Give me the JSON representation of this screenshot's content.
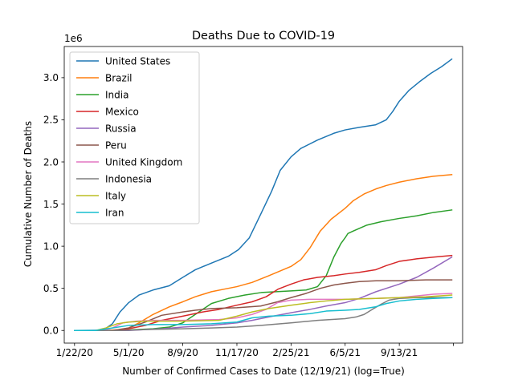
{
  "chart_data": {
    "type": "line",
    "title": "Deaths Due to COVID-19",
    "xlabel": "Number of Confirmed Cases to Date (12/19/21) (log=True)",
    "ylabel": "Cumulative Number of Deaths",
    "y_offset_label": "1e6",
    "x_tick_labels": [
      "1/22/20",
      "5/1/20",
      "8/9/20",
      "11/17/20",
      "2/25/21",
      "6/5/21",
      "9/13/21",
      ""
    ],
    "x_ticks": [
      "2020-01-22",
      "2020-05-01",
      "2020-08-09",
      "2020-11-17",
      "2021-02-25",
      "2021-06-05",
      "2021-09-13",
      "2021-12-22"
    ],
    "xlim": [
      "2020-01-03",
      "2022-01-08"
    ],
    "y_ticks": [
      0.0,
      0.5,
      1.0,
      1.5,
      2.0,
      2.5,
      3.0
    ],
    "y_tick_labels": [
      "0.0",
      "0.5",
      "1.0",
      "1.5",
      "2.0",
      "2.5",
      "3.0"
    ],
    "ylim": [
      -0.15,
      3.37
    ],
    "y_unit": 1000000,
    "grid": false,
    "legend_position": "top-left",
    "series": [
      {
        "name": "United States",
        "color": "#1f77b4",
        "points": [
          [
            "2020-01-22",
            0
          ],
          [
            "2020-03-15",
            0.003
          ],
          [
            "2020-04-01",
            0.08
          ],
          [
            "2020-04-15",
            0.22
          ],
          [
            "2020-05-01",
            0.33
          ],
          [
            "2020-05-20",
            0.42
          ],
          [
            "2020-06-15",
            0.48
          ],
          [
            "2020-07-15",
            0.53
          ],
          [
            "2020-08-09",
            0.63
          ],
          [
            "2020-09-01",
            0.72
          ],
          [
            "2020-10-01",
            0.8
          ],
          [
            "2020-11-01",
            0.88
          ],
          [
            "2020-11-20",
            0.96
          ],
          [
            "2020-12-10",
            1.1
          ],
          [
            "2020-12-31",
            1.38
          ],
          [
            "2021-01-20",
            1.65
          ],
          [
            "2021-02-05",
            1.9
          ],
          [
            "2021-02-25",
            2.06
          ],
          [
            "2021-03-15",
            2.16
          ],
          [
            "2021-04-15",
            2.26
          ],
          [
            "2021-05-15",
            2.34
          ],
          [
            "2021-06-05",
            2.38
          ],
          [
            "2021-07-01",
            2.41
          ],
          [
            "2021-07-31",
            2.44
          ],
          [
            "2021-08-20",
            2.5
          ],
          [
            "2021-09-01",
            2.6
          ],
          [
            "2021-09-13",
            2.72
          ],
          [
            "2021-10-01",
            2.85
          ],
          [
            "2021-10-20",
            2.95
          ],
          [
            "2021-11-10",
            3.05
          ],
          [
            "2021-11-30",
            3.13
          ],
          [
            "2021-12-19",
            3.22
          ]
        ]
      },
      {
        "name": "Brazil",
        "color": "#ff7f0e",
        "points": [
          [
            "2020-01-22",
            0
          ],
          [
            "2020-03-20",
            0
          ],
          [
            "2020-04-15",
            0.01
          ],
          [
            "2020-05-01",
            0.03
          ],
          [
            "2020-05-20",
            0.09
          ],
          [
            "2020-06-15",
            0.19
          ],
          [
            "2020-07-15",
            0.28
          ],
          [
            "2020-08-09",
            0.34
          ],
          [
            "2020-09-01",
            0.4
          ],
          [
            "2020-10-01",
            0.46
          ],
          [
            "2020-11-01",
            0.5
          ],
          [
            "2020-11-17",
            0.52
          ],
          [
            "2020-12-15",
            0.57
          ],
          [
            "2021-01-15",
            0.65
          ],
          [
            "2021-02-10",
            0.72
          ],
          [
            "2021-02-25",
            0.76
          ],
          [
            "2021-03-15",
            0.84
          ],
          [
            "2021-04-01",
            0.98
          ],
          [
            "2021-04-20",
            1.18
          ],
          [
            "2021-05-10",
            1.32
          ],
          [
            "2021-06-05",
            1.45
          ],
          [
            "2021-06-20",
            1.54
          ],
          [
            "2021-07-10",
            1.62
          ],
          [
            "2021-08-01",
            1.68
          ],
          [
            "2021-08-20",
            1.72
          ],
          [
            "2021-09-13",
            1.76
          ],
          [
            "2021-10-15",
            1.8
          ],
          [
            "2021-11-15",
            1.83
          ],
          [
            "2021-12-19",
            1.85
          ]
        ]
      },
      {
        "name": "India",
        "color": "#2ca02c",
        "points": [
          [
            "2020-01-22",
            0
          ],
          [
            "2020-04-15",
            0
          ],
          [
            "2020-05-15",
            0.01
          ],
          [
            "2020-06-15",
            0.02
          ],
          [
            "2020-07-15",
            0.04
          ],
          [
            "2020-08-09",
            0.09
          ],
          [
            "2020-09-01",
            0.19
          ],
          [
            "2020-10-01",
            0.32
          ],
          [
            "2020-11-01",
            0.38
          ],
          [
            "2020-12-01",
            0.42
          ],
          [
            "2021-01-01",
            0.45
          ],
          [
            "2021-02-25",
            0.47
          ],
          [
            "2021-03-25",
            0.48
          ],
          [
            "2021-04-15",
            0.52
          ],
          [
            "2021-05-01",
            0.65
          ],
          [
            "2021-05-15",
            0.87
          ],
          [
            "2021-05-28",
            1.03
          ],
          [
            "2021-06-05",
            1.1
          ],
          [
            "2021-06-10",
            1.15
          ],
          [
            "2021-06-20",
            1.18
          ],
          [
            "2021-07-15",
            1.25
          ],
          [
            "2021-08-10",
            1.29
          ],
          [
            "2021-09-13",
            1.33
          ],
          [
            "2021-10-15",
            1.36
          ],
          [
            "2021-11-15",
            1.4
          ],
          [
            "2021-12-19",
            1.43
          ]
        ]
      },
      {
        "name": "Mexico",
        "color": "#d62728",
        "points": [
          [
            "2020-01-22",
            0
          ],
          [
            "2020-04-15",
            0
          ],
          [
            "2020-05-01",
            0.02
          ],
          [
            "2020-06-01",
            0.06
          ],
          [
            "2020-07-01",
            0.12
          ],
          [
            "2020-08-09",
            0.17
          ],
          [
            "2020-09-15",
            0.22
          ],
          [
            "2020-10-15",
            0.25
          ],
          [
            "2020-11-17",
            0.3
          ],
          [
            "2020-12-15",
            0.34
          ],
          [
            "2021-01-10",
            0.4
          ],
          [
            "2021-02-01",
            0.49
          ],
          [
            "2021-02-25",
            0.55
          ],
          [
            "2021-03-20",
            0.6
          ],
          [
            "2021-04-15",
            0.63
          ],
          [
            "2021-05-15",
            0.65
          ],
          [
            "2021-06-05",
            0.67
          ],
          [
            "2021-07-01",
            0.69
          ],
          [
            "2021-07-31",
            0.72
          ],
          [
            "2021-08-20",
            0.77
          ],
          [
            "2021-09-13",
            0.82
          ],
          [
            "2021-10-15",
            0.85
          ],
          [
            "2021-11-15",
            0.87
          ],
          [
            "2021-12-19",
            0.89
          ]
        ]
      },
      {
        "name": "Russia",
        "color": "#9467bd",
        "points": [
          [
            "2020-01-22",
            0
          ],
          [
            "2020-05-01",
            0
          ],
          [
            "2020-06-01",
            0.01
          ],
          [
            "2020-07-01",
            0.02
          ],
          [
            "2020-08-09",
            0.04
          ],
          [
            "2020-10-01",
            0.06
          ],
          [
            "2020-11-17",
            0.09
          ],
          [
            "2020-12-15",
            0.12
          ],
          [
            "2021-01-15",
            0.16
          ],
          [
            "2021-02-25",
            0.21
          ],
          [
            "2021-04-01",
            0.25
          ],
          [
            "2021-05-01",
            0.29
          ],
          [
            "2021-06-05",
            0.33
          ],
          [
            "2021-07-01",
            0.38
          ],
          [
            "2021-08-01",
            0.46
          ],
          [
            "2021-09-13",
            0.55
          ],
          [
            "2021-10-15",
            0.63
          ],
          [
            "2021-11-15",
            0.74
          ],
          [
            "2021-12-19",
            0.87
          ]
        ]
      },
      {
        "name": "Peru",
        "color": "#8c564b",
        "points": [
          [
            "2020-01-22",
            0
          ],
          [
            "2020-04-01",
            0
          ],
          [
            "2020-05-01",
            0.03
          ],
          [
            "2020-06-01",
            0.1
          ],
          [
            "2020-07-01",
            0.18
          ],
          [
            "2020-08-09",
            0.22
          ],
          [
            "2020-09-01",
            0.24
          ],
          [
            "2020-10-01",
            0.26
          ],
          [
            "2020-11-17",
            0.27
          ],
          [
            "2020-12-31",
            0.29
          ],
          [
            "2021-01-31",
            0.34
          ],
          [
            "2021-02-25",
            0.39
          ],
          [
            "2021-03-25",
            0.44
          ],
          [
            "2021-04-20",
            0.5
          ],
          [
            "2021-05-15",
            0.54
          ],
          [
            "2021-06-05",
            0.56
          ],
          [
            "2021-07-01",
            0.58
          ],
          [
            "2021-08-01",
            0.59
          ],
          [
            "2021-09-13",
            0.59
          ],
          [
            "2021-11-01",
            0.6
          ],
          [
            "2021-12-19",
            0.6
          ]
        ]
      },
      {
        "name": "United Kingdom",
        "color": "#e377c2",
        "points": [
          [
            "2020-01-22",
            0
          ],
          [
            "2020-03-15",
            0
          ],
          [
            "2020-04-01",
            0.03
          ],
          [
            "2020-04-20",
            0.09
          ],
          [
            "2020-05-15",
            0.11
          ],
          [
            "2020-06-15",
            0.12
          ],
          [
            "2020-08-09",
            0.12
          ],
          [
            "2020-10-15",
            0.13
          ],
          [
            "2020-11-17",
            0.15
          ],
          [
            "2020-12-15",
            0.19
          ],
          [
            "2021-01-10",
            0.25
          ],
          [
            "2021-01-31",
            0.33
          ],
          [
            "2021-02-25",
            0.36
          ],
          [
            "2021-04-01",
            0.37
          ],
          [
            "2021-06-05",
            0.37
          ],
          [
            "2021-08-01",
            0.38
          ],
          [
            "2021-09-13",
            0.39
          ],
          [
            "2021-10-15",
            0.41
          ],
          [
            "2021-11-15",
            0.43
          ],
          [
            "2021-12-19",
            0.44
          ]
        ]
      },
      {
        "name": "Indonesia",
        "color": "#7f7f7f",
        "points": [
          [
            "2020-01-22",
            0
          ],
          [
            "2020-04-15",
            0
          ],
          [
            "2020-06-01",
            0.01
          ],
          [
            "2020-08-09",
            0.02
          ],
          [
            "2020-10-01",
            0.03
          ],
          [
            "2020-11-17",
            0.04
          ],
          [
            "2021-01-01",
            0.06
          ],
          [
            "2021-02-25",
            0.09
          ],
          [
            "2021-04-15",
            0.12
          ],
          [
            "2021-06-05",
            0.14
          ],
          [
            "2021-06-25",
            0.16
          ],
          [
            "2021-07-10",
            0.19
          ],
          [
            "2021-07-25",
            0.25
          ],
          [
            "2021-08-10",
            0.31
          ],
          [
            "2021-08-25",
            0.36
          ],
          [
            "2021-09-13",
            0.38
          ],
          [
            "2021-10-15",
            0.39
          ],
          [
            "2021-12-19",
            0.39
          ]
        ]
      },
      {
        "name": "Italy",
        "color": "#bcbd22",
        "points": [
          [
            "2020-01-22",
            0
          ],
          [
            "2020-03-01",
            0
          ],
          [
            "2020-03-20",
            0.03
          ],
          [
            "2020-04-10",
            0.08
          ],
          [
            "2020-05-01",
            0.1
          ],
          [
            "2020-06-01",
            0.11
          ],
          [
            "2020-08-09",
            0.11
          ],
          [
            "2020-10-15",
            0.12
          ],
          [
            "2020-11-17",
            0.17
          ],
          [
            "2020-12-15",
            0.22
          ],
          [
            "2021-01-15",
            0.26
          ],
          [
            "2021-02-25",
            0.3
          ],
          [
            "2021-04-01",
            0.33
          ],
          [
            "2021-05-01",
            0.35
          ],
          [
            "2021-06-05",
            0.37
          ],
          [
            "2021-08-01",
            0.38
          ],
          [
            "2021-09-13",
            0.39
          ],
          [
            "2021-11-01",
            0.4
          ],
          [
            "2021-12-19",
            0.42
          ]
        ]
      },
      {
        "name": "Iran",
        "color": "#17becf",
        "points": [
          [
            "2020-01-22",
            0
          ],
          [
            "2020-03-01",
            0
          ],
          [
            "2020-04-01",
            0.03
          ],
          [
            "2020-05-01",
            0.06
          ],
          [
            "2020-06-15",
            0.07
          ],
          [
            "2020-08-09",
            0.07
          ],
          [
            "2020-10-01",
            0.08
          ],
          [
            "2020-11-17",
            0.1
          ],
          [
            "2020-12-15",
            0.15
          ],
          [
            "2021-01-15",
            0.17
          ],
          [
            "2021-02-25",
            0.18
          ],
          [
            "2021-04-01",
            0.2
          ],
          [
            "2021-05-01",
            0.23
          ],
          [
            "2021-06-05",
            0.24
          ],
          [
            "2021-07-01",
            0.25
          ],
          [
            "2021-07-31",
            0.28
          ],
          [
            "2021-08-20",
            0.32
          ],
          [
            "2021-09-13",
            0.35
          ],
          [
            "2021-10-15",
            0.37
          ],
          [
            "2021-11-15",
            0.38
          ],
          [
            "2021-12-19",
            0.39
          ]
        ]
      }
    ]
  }
}
